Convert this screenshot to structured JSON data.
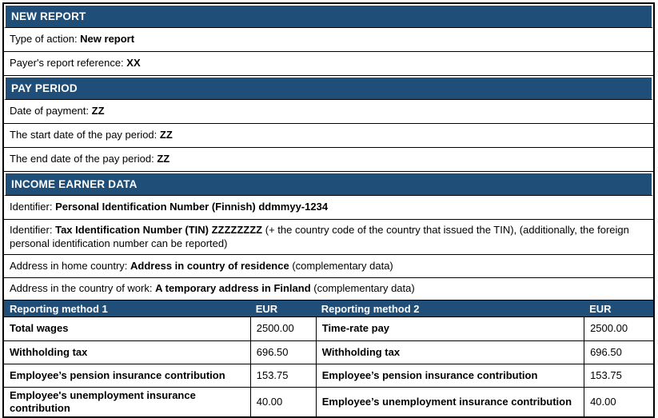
{
  "colors": {
    "section_header_bg": "#1F4E79",
    "section_header_text": "#FFFFFF",
    "border": "#000000",
    "body_bg": "#FFFFFF",
    "text": "#000000"
  },
  "sections": [
    {
      "title": "NEW REPORT",
      "rows": [
        {
          "label": "Type of action: ",
          "value": "New report"
        },
        {
          "label": "Payer's report reference: ",
          "value": "XX"
        }
      ]
    },
    {
      "title": "PAY PERIOD",
      "rows": [
        {
          "label": "Date of payment: ",
          "value": "ZZ"
        },
        {
          "label": "The start date of the pay period: ",
          "value": "ZZ"
        },
        {
          "label": "The end date of the pay period: ",
          "value": "ZZ"
        }
      ]
    },
    {
      "title": "INCOME EARNER DATA",
      "rows": [
        {
          "label": "Identifier: ",
          "value": "Personal Identification Number (Finnish) ddmmyy-1234"
        },
        {
          "label": "Identifier: ",
          "value": "Tax Identification Number (TIN) ZZZZZZZZ",
          "suffix": " (+ the country code of the country that issued the TIN), (additionally, the foreign personal identification number can be reported)"
        },
        {
          "label": "Address in home country: ",
          "value": "Address in country of residence",
          "suffix": " (complementary data)"
        },
        {
          "label": "Address in the country of work: ",
          "value": "A temporary address in Finland",
          "suffix": " (complementary data)"
        }
      ]
    }
  ],
  "pay_table": {
    "headers": [
      "Reporting method 1",
      "EUR",
      "Reporting method 2",
      "EUR"
    ],
    "rows": [
      {
        "method1": "Total wages",
        "eur1": "2500.00",
        "method2": "Time-rate pay",
        "eur2": "2500.00"
      },
      {
        "method1": "Withholding tax",
        "eur1": "696.50",
        "method2": "Withholding tax",
        "eur2": "696.50"
      },
      {
        "method1": "Employee’s pension insurance contribution",
        "eur1": "153.75",
        "method2": "Employee’s pension insurance contribution",
        "eur2": "153.75"
      },
      {
        "method1": "Employee's unemployment insurance contribution",
        "eur1": "40.00",
        "method2": "Employee’s unemployment insurance contribution",
        "eur2": "40.00"
      }
    ]
  }
}
